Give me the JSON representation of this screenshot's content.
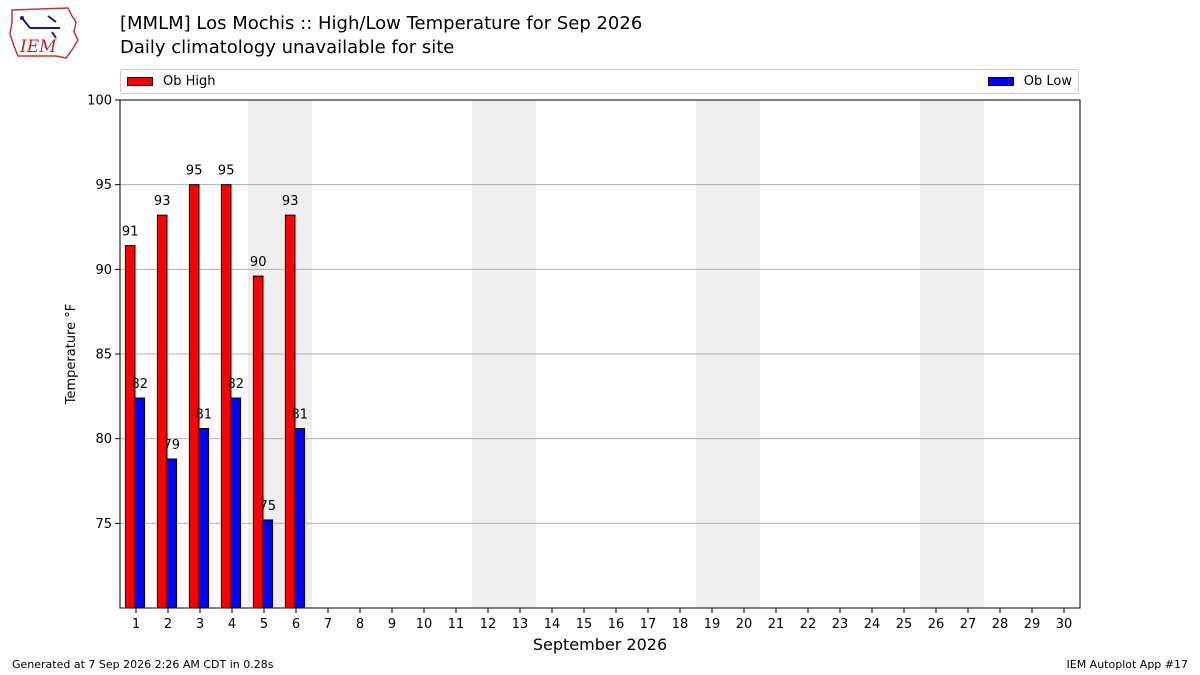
{
  "header": {
    "title": "[MMLM] Los Mochis :: High/Low Temperature for Sep 2026",
    "subtitle": "Daily climatology unavailable for site",
    "logo_text": "IEM"
  },
  "footer": {
    "generated": "Generated at 7 Sep 2026 2:26 AM CDT in 0.28s",
    "app": "IEM Autoplot App #17"
  },
  "chart_data": {
    "type": "bar",
    "xlabel": "September 2026",
    "ylabel": "Temperature °F",
    "ylim": [
      70,
      100
    ],
    "yticks": [
      75,
      80,
      85,
      90,
      95,
      100
    ],
    "grid": true,
    "legend_position": "top",
    "categories": [
      "1",
      "2",
      "3",
      "4",
      "5",
      "6",
      "7",
      "8",
      "9",
      "10",
      "11",
      "12",
      "13",
      "14",
      "15",
      "16",
      "17",
      "18",
      "19",
      "20",
      "21",
      "22",
      "23",
      "24",
      "25",
      "26",
      "27",
      "28",
      "29",
      "30"
    ],
    "weekend_days": [
      5,
      6,
      12,
      13,
      19,
      20,
      26,
      27
    ],
    "series": [
      {
        "name": "Ob High",
        "color": "#ff0000",
        "values": [
          91.4,
          93.2,
          95.0,
          95.0,
          89.6,
          93.2,
          null,
          null,
          null,
          null,
          null,
          null,
          null,
          null,
          null,
          null,
          null,
          null,
          null,
          null,
          null,
          null,
          null,
          null,
          null,
          null,
          null,
          null,
          null,
          null
        ],
        "labels": [
          "91",
          "93",
          "95",
          "95",
          "90",
          "93"
        ]
      },
      {
        "name": "Ob Low",
        "color": "#0000ff",
        "values": [
          82.4,
          78.8,
          80.6,
          82.4,
          75.2,
          80.6,
          null,
          null,
          null,
          null,
          null,
          null,
          null,
          null,
          null,
          null,
          null,
          null,
          null,
          null,
          null,
          null,
          null,
          null,
          null,
          null,
          null,
          null,
          null,
          null
        ],
        "labels": [
          "82",
          "79",
          "81",
          "82",
          "75",
          "81"
        ]
      }
    ]
  }
}
